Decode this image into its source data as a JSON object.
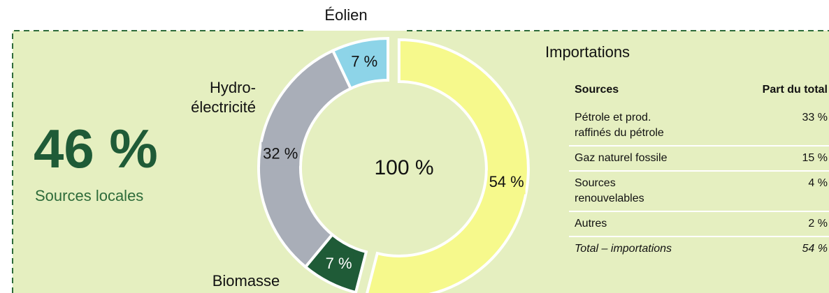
{
  "chart_data": {
    "type": "donut",
    "categories": [
      "Importations",
      "Biomasse",
      "Hydro-\nélectricité",
      "Éolien"
    ],
    "values": [
      54,
      7,
      32,
      7
    ],
    "value_labels": [
      "54 %",
      "7 %",
      "32 %",
      "7 %"
    ],
    "colors": [
      "#f6f98c",
      "#1f5b37",
      "#a9aeb8",
      "#8dd4e8"
    ],
    "center_label": "100 %"
  },
  "summary": {
    "value": "46 %",
    "label": "Sources locales"
  },
  "table": {
    "header": [
      "Sources",
      "Part du total"
    ],
    "rows": [
      [
        "Pétrole et prod.\nraffinés du pétrole",
        "33 %"
      ],
      [
        "Gaz naturel fossile",
        "15 %"
      ],
      [
        "Sources\nrenouvelables",
        "4 %"
      ],
      [
        "Autres",
        "2 %"
      ],
      [
        "Total – importations",
        "54 %"
      ]
    ]
  }
}
